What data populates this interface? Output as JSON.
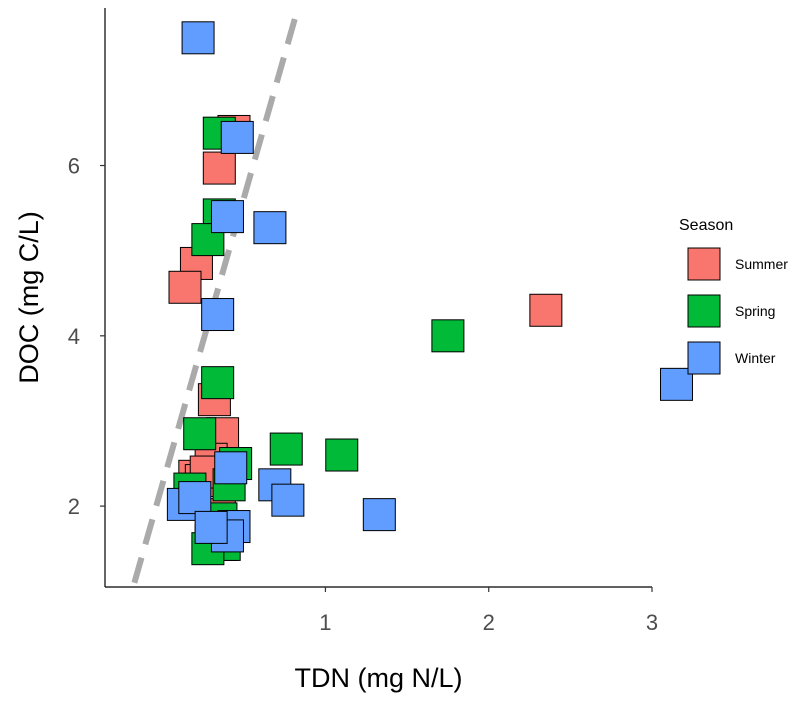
{
  "chart_data": {
    "type": "scatter",
    "xlabel": "TDN (mg N/L)",
    "ylabel": "DOC (mg C/L)",
    "xlim": [
      -0.35,
      3.0
    ],
    "ylim": [
      1.05,
      7.85
    ],
    "xticks": [
      1,
      2,
      3
    ],
    "yticks": [
      2,
      4,
      6
    ],
    "grid": false,
    "legend": {
      "title": "Season",
      "position": "right"
    },
    "reference_line": {
      "style": "dashed",
      "color": "#aaaaaa",
      "points": [
        [
          -0.17,
          1.1
        ],
        [
          0.83,
          7.84
        ]
      ]
    },
    "series": [
      {
        "name": "Summer",
        "color": "#F8766D",
        "points": [
          [
            0.44,
            6.4
          ],
          [
            0.35,
            5.97
          ],
          [
            0.21,
            4.85
          ],
          [
            0.14,
            4.57
          ],
          [
            2.35,
            4.3
          ],
          [
            0.32,
            3.25
          ],
          [
            0.37,
            2.85
          ],
          [
            0.3,
            2.55
          ],
          [
            0.2,
            2.35
          ],
          [
            0.24,
            2.3
          ],
          [
            0.27,
            2.4
          ],
          [
            0.31,
            1.85
          ],
          [
            0.35,
            1.9
          ],
          [
            0.3,
            1.6
          ],
          [
            0.36,
            1.55
          ]
        ]
      },
      {
        "name": "Spring",
        "color": "#00BA38",
        "points": [
          [
            0.35,
            6.38
          ],
          [
            0.35,
            5.42
          ],
          [
            0.28,
            5.13
          ],
          [
            1.75,
            4.0
          ],
          [
            0.34,
            3.45
          ],
          [
            0.23,
            2.85
          ],
          [
            0.45,
            2.5
          ],
          [
            0.76,
            2.67
          ],
          [
            1.1,
            2.6
          ],
          [
            0.17,
            2.2
          ],
          [
            0.41,
            2.25
          ],
          [
            0.36,
            1.85
          ],
          [
            0.33,
            1.6
          ],
          [
            0.38,
            1.55
          ],
          [
            0.28,
            1.5
          ]
        ]
      },
      {
        "name": "Winter",
        "color": "#619CFF",
        "points": [
          [
            0.22,
            7.5
          ],
          [
            0.46,
            6.33
          ],
          [
            0.4,
            5.4
          ],
          [
            0.66,
            5.27
          ],
          [
            0.34,
            4.25
          ],
          [
            3.15,
            3.43
          ],
          [
            0.42,
            2.45
          ],
          [
            0.69,
            2.25
          ],
          [
            0.77,
            2.07
          ],
          [
            1.33,
            1.9
          ],
          [
            0.13,
            2.02
          ],
          [
            0.2,
            2.1
          ],
          [
            0.44,
            1.76
          ],
          [
            0.4,
            1.65
          ],
          [
            0.3,
            1.75
          ]
        ]
      }
    ]
  }
}
